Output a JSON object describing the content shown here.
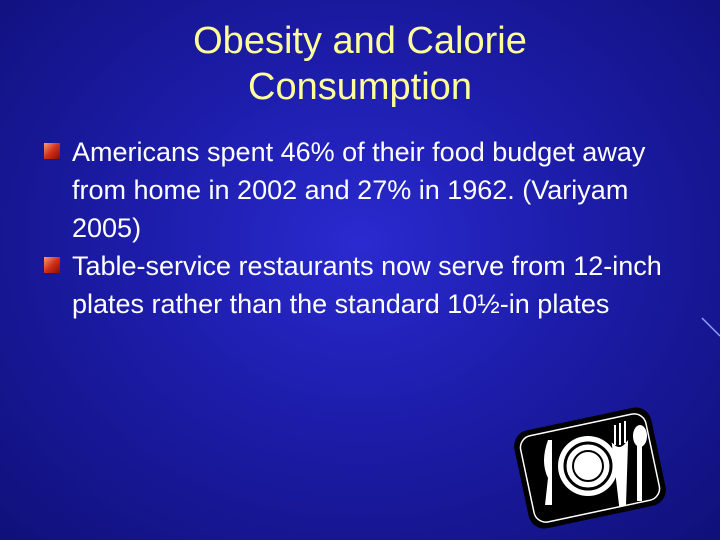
{
  "title": "Obesity and Calorie Consumption",
  "bullets": [
    "Americans spent 46% of their food budget away from home in 2002 and 27% in 1962. (Variyam 2005)",
    "Table-service restaurants now serve from 12-inch plates rather than the standard 10½-in plates"
  ]
}
